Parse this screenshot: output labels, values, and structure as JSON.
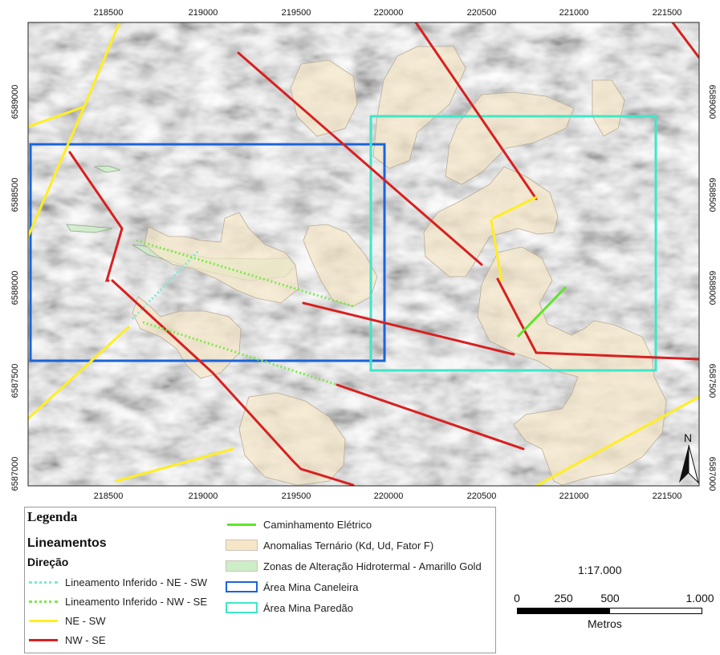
{
  "map": {
    "x_ticks": [
      "218500",
      "219000",
      "219500",
      "220000",
      "220500",
      "221000",
      "221500"
    ],
    "y_ticks": [
      "6589000",
      "6588500",
      "6588000",
      "6587500",
      "6587000"
    ],
    "north_label": "N",
    "colors": {
      "nw_se": "#d82020",
      "ne_sw": "#ffee22",
      "inferred_ne_sw": "#7ee8d6",
      "inferred_nw_se": "#7de84a",
      "caminhamento": "#5ee62a",
      "anomaly": "#f5e6c8",
      "alteration": "#cdeec7",
      "caneleira": "#1a64d8",
      "paredao": "#3fe6c8"
    }
  },
  "legend": {
    "title": "Legenda",
    "group_heading": "Lineamentos",
    "sub_heading": "Direção",
    "items": [
      {
        "label": "Lineamento Inferido - NE - SW"
      },
      {
        "label": "Lineamento Inferido - NW - SE"
      },
      {
        "label": "NE - SW"
      },
      {
        "label": "NW - SE"
      },
      {
        "label": "Caminhamento Elétrico"
      },
      {
        "label": "Anomalias Ternário (Kd, Ud, Fator F)"
      },
      {
        "label": "Zonas de Alteração Hidrotermal - Amarillo Gold"
      },
      {
        "label": "Área Mina Caneleira"
      },
      {
        "label": "Área Mina Paredão"
      }
    ]
  },
  "scale": {
    "ratio": "1:17.000",
    "ticks": [
      "0",
      "250",
      "500",
      "1.000"
    ],
    "unit": "Metros"
  }
}
